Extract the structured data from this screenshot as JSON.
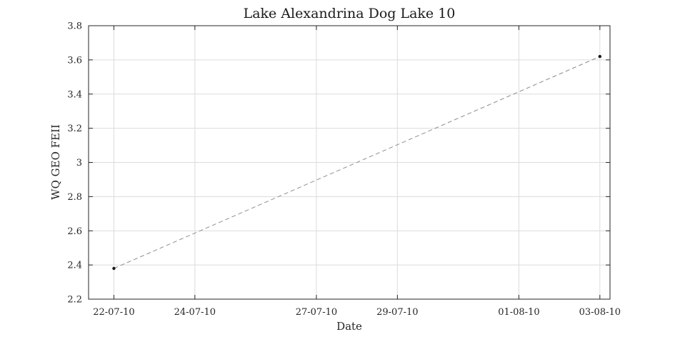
{
  "chart_data": {
    "type": "line",
    "title": "Lake Alexandrina Dog Lake 10",
    "xlabel": "Date",
    "ylabel": "WQ GEO FEII",
    "x_ticks": [
      {
        "date": "2010-07-22",
        "label": "22-07-10"
      },
      {
        "date": "2010-07-24",
        "label": "24-07-10"
      },
      {
        "date": "2010-07-27",
        "label": "27-07-10"
      },
      {
        "date": "2010-07-29",
        "label": "29-07-10"
      },
      {
        "date": "2010-08-01",
        "label": "01-08-10"
      },
      {
        "date": "2010-08-03",
        "label": "03-08-10"
      }
    ],
    "xlim": [
      "2010-07-21 09:00",
      "2010-08-03 06:00"
    ],
    "ylim": [
      2.2,
      3.8
    ],
    "y_ticks": [
      "2.2",
      "2.4",
      "2.6",
      "2.8",
      "3",
      "3.2",
      "3.4",
      "3.6",
      "3.8"
    ],
    "grid": true,
    "series": [
      {
        "points": [
          {
            "x": "2010-07-22",
            "y": 2.38
          },
          {
            "x": "2010-08-03",
            "y": 3.62
          }
        ],
        "line_style": "dashed",
        "line_color": "#8c8c8c",
        "marker_color": "#1a1a1a"
      }
    ]
  }
}
